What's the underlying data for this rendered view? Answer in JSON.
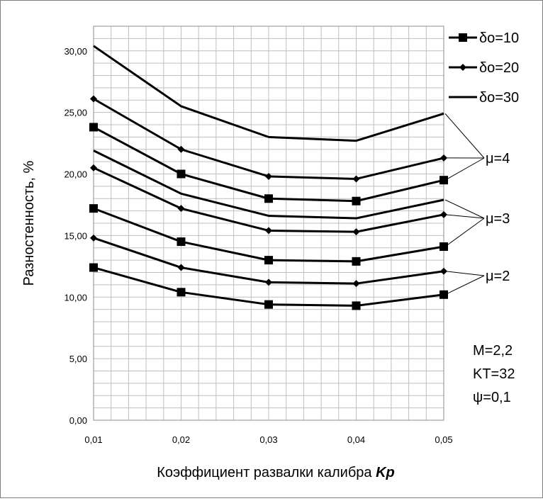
{
  "chart_data": {
    "type": "line",
    "categories": [
      "0,01",
      "0,02",
      "0,03",
      "0,04",
      "0,05"
    ],
    "x": [
      0.01,
      0.02,
      0.03,
      0.04,
      0.05
    ],
    "ylim": [
      0,
      32
    ],
    "yticks": [
      0,
      5,
      10,
      15,
      20,
      25,
      30
    ],
    "ytick_labels": [
      "0,00",
      "5,00",
      "10,00",
      "15,00",
      "20,00",
      "25,00",
      "30,00"
    ],
    "ylabel": "Разностенность, %",
    "xlabel": "Коэффициент развалки калибра ",
    "xlabel_italic": "Kp",
    "grid": true,
    "legend_position": "top-right",
    "legend": [
      {
        "label": "δo=10",
        "marker": "square"
      },
      {
        "label": "δo=20",
        "marker": "diamond"
      },
      {
        "label": "δo=30",
        "marker": "none"
      }
    ],
    "series": [
      {
        "group": "μ=4",
        "marker": "none",
        "values": [
          30.4,
          25.5,
          23.0,
          22.7,
          24.9
        ]
      },
      {
        "group": "μ=4",
        "marker": "diamond",
        "values": [
          26.1,
          22.0,
          19.8,
          19.6,
          21.3
        ]
      },
      {
        "group": "μ=4",
        "marker": "square",
        "values": [
          23.8,
          20.0,
          18.0,
          17.8,
          19.5
        ]
      },
      {
        "group": "μ=3",
        "marker": "none",
        "values": [
          21.9,
          18.4,
          16.6,
          16.4,
          17.9
        ]
      },
      {
        "group": "μ=3",
        "marker": "diamond",
        "values": [
          20.5,
          17.2,
          15.4,
          15.3,
          16.7
        ]
      },
      {
        "group": "μ=3",
        "marker": "square",
        "values": [
          17.2,
          14.5,
          13.0,
          12.9,
          14.1
        ]
      },
      {
        "group": "μ=2",
        "marker": "diamond",
        "values": [
          14.8,
          12.4,
          11.2,
          11.1,
          12.1
        ]
      },
      {
        "group": "μ=2",
        "marker": "square",
        "values": [
          12.4,
          10.4,
          9.4,
          9.3,
          10.2
        ]
      }
    ],
    "group_labels": [
      "μ=4",
      "μ=3",
      "μ=2"
    ],
    "annotations": [
      "M=2,2",
      "KT=32",
      "ψ=0,1"
    ]
  }
}
